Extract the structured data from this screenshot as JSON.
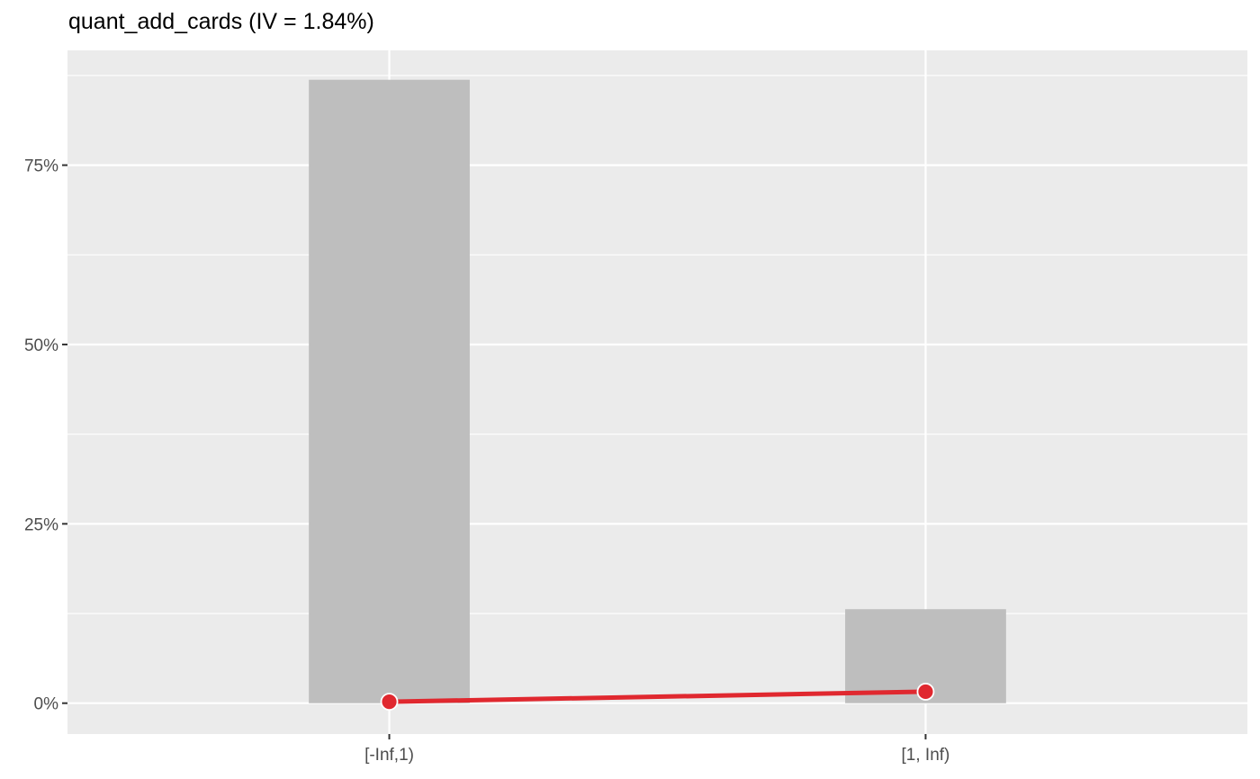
{
  "chart_data": {
    "type": "bar",
    "title": "quant_add_cards (IV = 1.84%)",
    "xlabel": "",
    "ylabel": "",
    "categories": [
      "[-Inf,1)",
      "[1, Inf)"
    ],
    "series": [
      {
        "type": "bar",
        "values": [
          86.9,
          13.1
        ]
      },
      {
        "type": "line",
        "values": [
          0.2,
          1.6
        ]
      }
    ],
    "ylim": [
      -4.3,
      91
    ],
    "y_ticks": [
      0,
      25,
      50,
      75
    ],
    "y_tick_labels": [
      "0%",
      "25%",
      "50%",
      "75%"
    ],
    "grid": true,
    "legend": "none",
    "colors": {
      "panel": "#ebebeb",
      "grid": "#ffffff",
      "bar": "#bebebe",
      "line": "#e0282f",
      "point_fill": "#e0282f",
      "point_stroke": "#ffffff",
      "axis_text": "#4d4d4d",
      "tick": "#333333"
    }
  }
}
